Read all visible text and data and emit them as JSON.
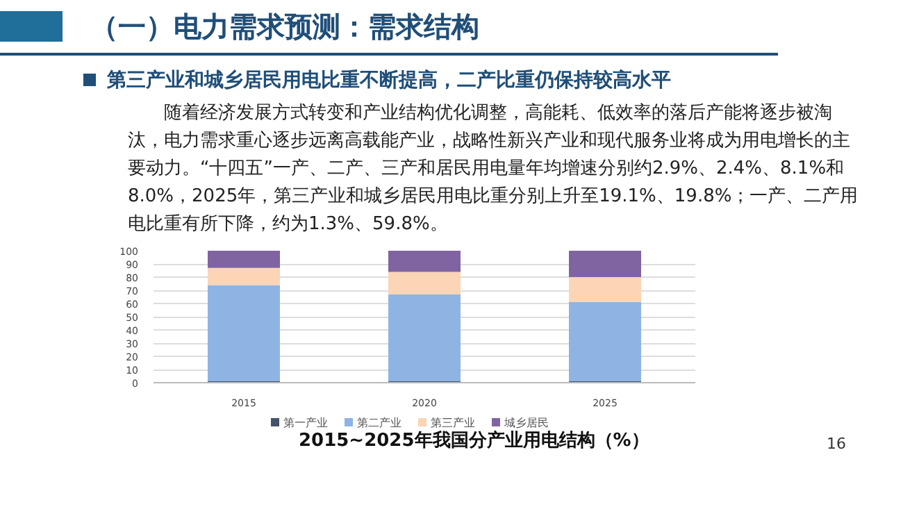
{
  "chart_data": {
    "type": "bar",
    "title": "（一）电力需求预测：需求结构",
    "subtitle": "第三产业和城乡居民用电比重不断提高，二产比重仍保持较高水平",
    "annotations": [
      "随着经济发展方式转变和产业结构优化调整，高能耗、低效率的落后产能将逐步被淘汰，电力需求重心逐步远离高载能产业，战略性新兴产业和现代服务业将成为用电增长的主要动力。“十四五”一产、二产、三产和居民用电量年均增速分别约2.9%、2.4%、8.1%和8.0%，2025年，第三产业和城乡居民用电比重分别上升至19.1%、19.8%；一产、二产用电比重有所下降，约为1.3%、59.8%。",
      "2015~2025年我国分产业用电结构（%）",
      "16"
    ],
    "categories": [
      "2015",
      "2020",
      "2025"
    ],
    "stacked": true,
    "series": [
      {
        "name": "第一产业",
        "color": "#44546a",
        "values": [
          1,
          1,
          1
        ]
      },
      {
        "name": "第二产业",
        "color": "#8eb4e3",
        "values": [
          73,
          66,
          60
        ]
      },
      {
        "name": "第三产业",
        "color": "#fbd5b5",
        "values": [
          13,
          17,
          19
        ]
      },
      {
        "name": "城乡居民",
        "color": "#8064a2",
        "values": [
          13,
          16,
          20
        ]
      }
    ],
    "ylim": [
      0,
      100
    ],
    "yticks": [
      0,
      10,
      20,
      30,
      40,
      50,
      60,
      70,
      80,
      90,
      100
    ],
    "grid": "y",
    "legend": "bottom"
  }
}
